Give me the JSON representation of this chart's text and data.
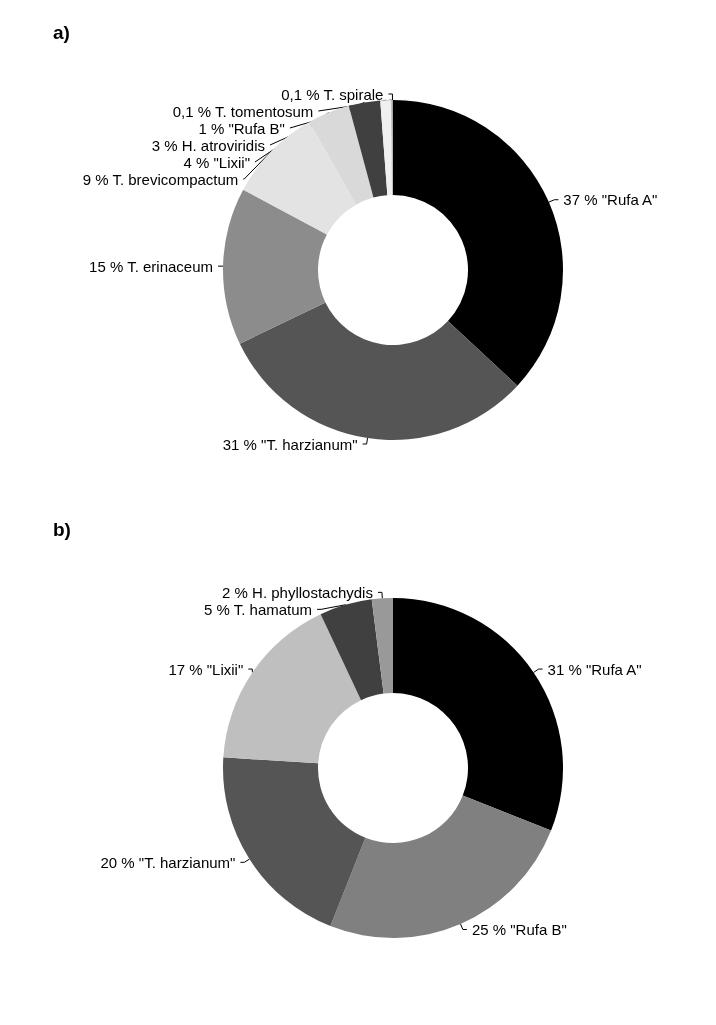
{
  "chart_data": [
    {
      "type": "donut",
      "title": "a)",
      "categories": [
        "\"Rufa A\"",
        "\"T. harzianum\"",
        "T. erinaceum",
        "T. brevicompactum",
        "\"Lixii\"",
        "H. atroviridis",
        "\"Rufa B\"",
        "T. tomentosum",
        "T. spirale"
      ],
      "values": [
        37,
        31,
        15,
        9,
        4,
        3,
        1,
        0.1,
        0.1
      ],
      "value_labels": [
        "37 %",
        "31 %",
        "15 %",
        "9 %",
        "4 %",
        "3 %",
        "1 %",
        "0,1 %",
        "0,1 %"
      ],
      "colors": [
        "#000000",
        "#555555",
        "#8c8c8c",
        "#e3e3e3",
        "#d9d9d9",
        "#404040",
        "#f0f0f0",
        "#bfbfbf",
        "#a6a6a6"
      ],
      "legend": false
    },
    {
      "type": "donut",
      "title": "b)",
      "categories": [
        "\"Rufa A\"",
        "\"Rufa B\"",
        "\"T. harzianum\"",
        "\"Lixii\"",
        "T. hamatum",
        "H. phyllostachydis"
      ],
      "values": [
        31,
        25,
        20,
        17,
        5,
        2
      ],
      "value_labels": [
        "31 %",
        "25 %",
        "20 %",
        "17 %",
        "5 %",
        "2 %"
      ],
      "colors": [
        "#000000",
        "#808080",
        "#555555",
        "#bfbfbf",
        "#404040",
        "#999999"
      ],
      "legend": false
    }
  ]
}
